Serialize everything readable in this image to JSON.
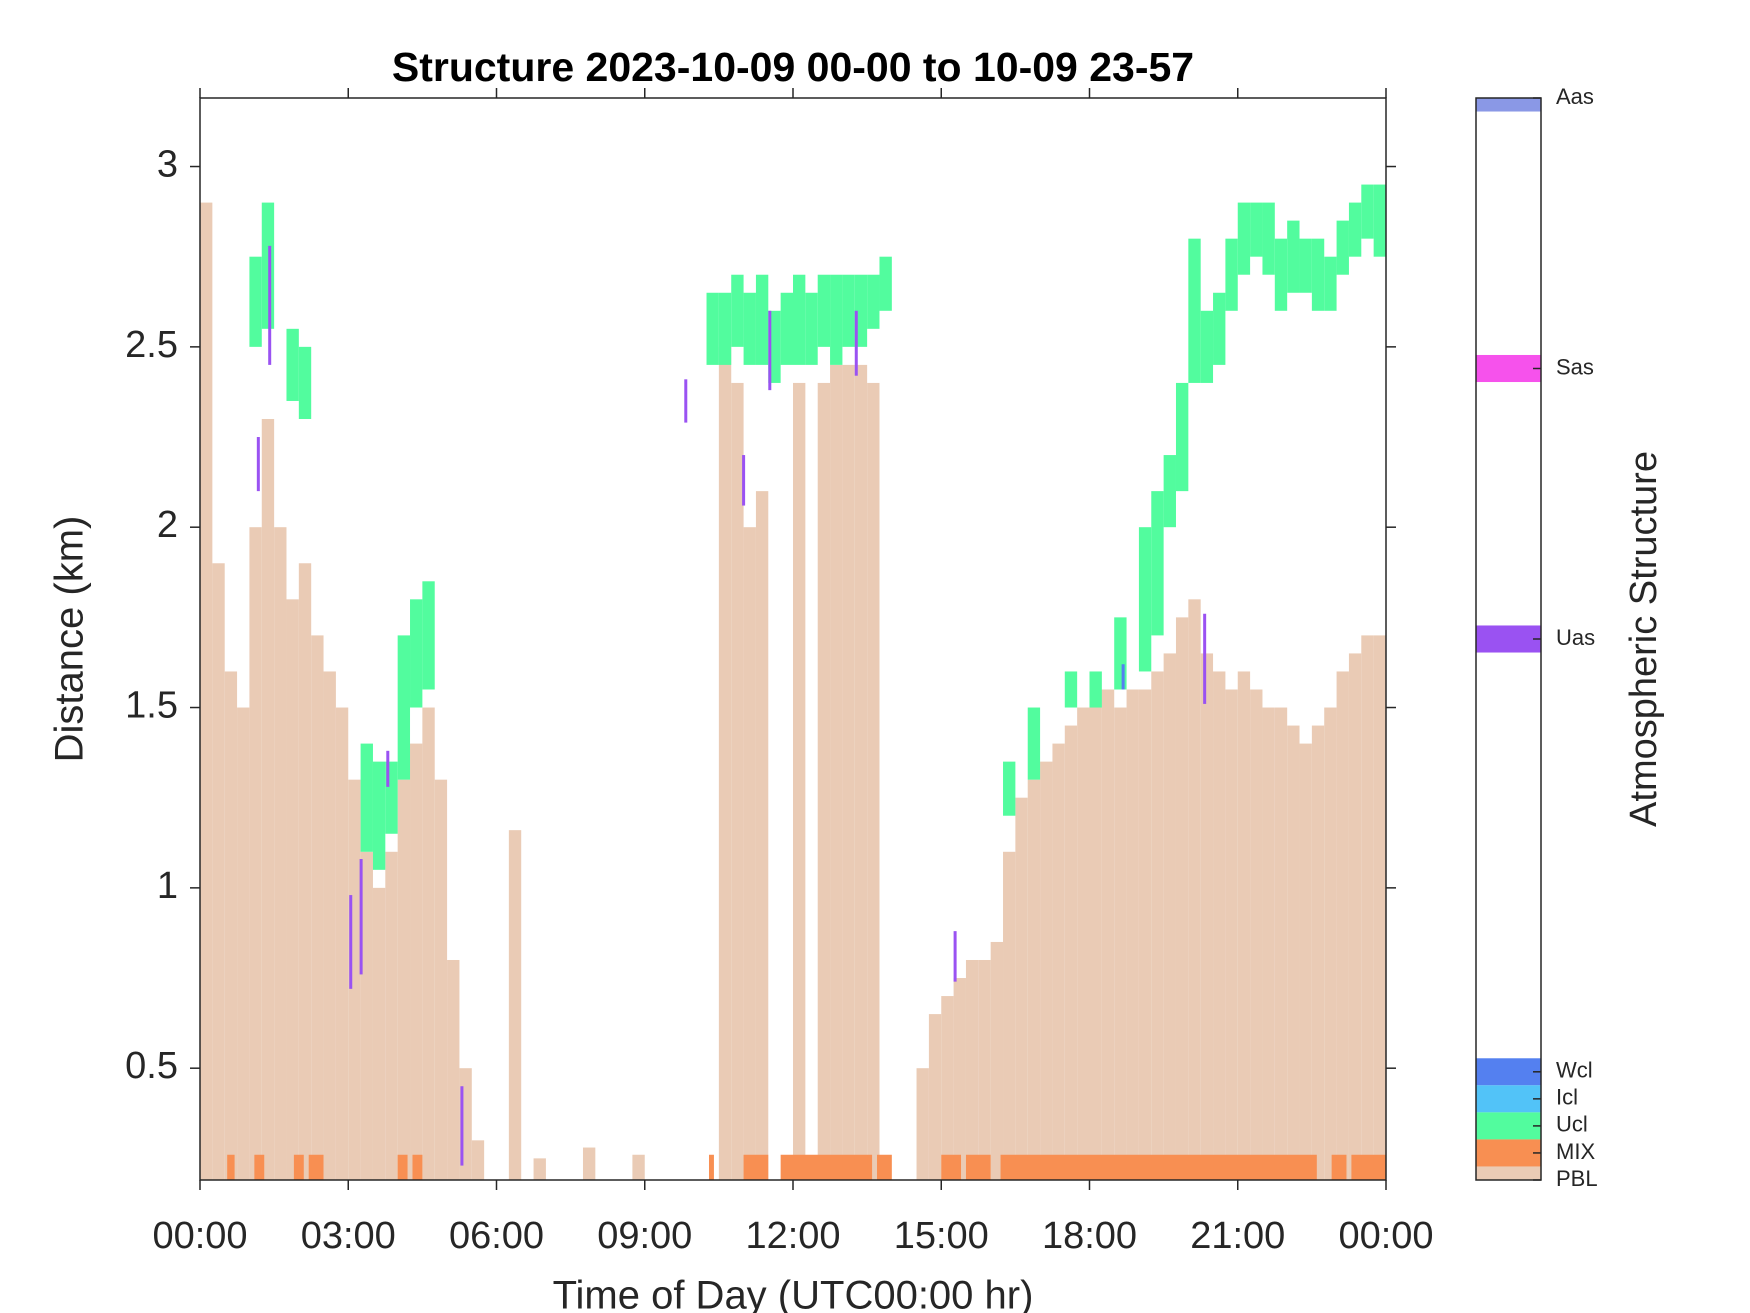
{
  "chart_data": {
    "type": "structure",
    "title": "Structure 2023-10-09 00-00 to 10-09 23-57",
    "x_label": "Time of Day (UTC00:00 hr)",
    "y_label": "Distance (km)",
    "xlim": [
      0,
      24
    ],
    "xticks": [
      {
        "value": 0,
        "label": "00:00"
      },
      {
        "value": 3,
        "label": "03:00"
      },
      {
        "value": 6,
        "label": "06:00"
      },
      {
        "value": 9,
        "label": "09:00"
      },
      {
        "value": 12,
        "label": "12:00"
      },
      {
        "value": 15,
        "label": "15:00"
      },
      {
        "value": 18,
        "label": "18:00"
      },
      {
        "value": 21,
        "label": "21:00"
      },
      {
        "value": 24,
        "label": "00:00"
      }
    ],
    "ylim": [
      0.19,
      3.19
    ],
    "yticks": [
      0.5,
      1,
      1.5,
      2,
      2.5,
      3
    ],
    "series": [
      {
        "name": "PBL",
        "color": "#eacbb5",
        "x": [
          0,
          0.25,
          0.5,
          0.75,
          1,
          1.25,
          1.5,
          1.75,
          2,
          2.25,
          2.5,
          2.75,
          3,
          3.25,
          3.5,
          3.75,
          4,
          4.25,
          4.5,
          4.75,
          5,
          5.25,
          5.5,
          6.25,
          6.75,
          7.75,
          8.75,
          10.5,
          10.75,
          11,
          11.25,
          12,
          12.5,
          12.75,
          13,
          13.25,
          13.5,
          14.5,
          14.75,
          15,
          15.25,
          15.5,
          15.75,
          16,
          16.25,
          16.5,
          16.75,
          17,
          17.25,
          17.5,
          17.75,
          18,
          18.25,
          18.5,
          18.75,
          19,
          19.25,
          19.5,
          19.75,
          20,
          20.25,
          20.5,
          20.75,
          21,
          21.25,
          21.5,
          21.75,
          22,
          22.25,
          22.5,
          22.75,
          23,
          23.25,
          23.5,
          23.75
        ],
        "values": [
          2.9,
          1.9,
          1.6,
          1.5,
          2.0,
          2.3,
          2.0,
          1.8,
          1.9,
          1.7,
          1.6,
          1.5,
          1.3,
          1.1,
          1.0,
          1.1,
          1.3,
          1.4,
          1.5,
          1.3,
          0.8,
          0.5,
          0.3,
          1.16,
          0.25,
          0.28,
          0.26,
          2.5,
          2.4,
          2.0,
          2.1,
          2.4,
          2.4,
          2.45,
          2.45,
          2.45,
          2.4,
          0.5,
          0.65,
          0.7,
          0.75,
          0.8,
          0.8,
          0.85,
          1.1,
          1.25,
          1.3,
          1.35,
          1.4,
          1.45,
          1.5,
          1.55,
          1.55,
          1.5,
          1.55,
          1.55,
          1.6,
          1.65,
          1.75,
          1.8,
          1.65,
          1.6,
          1.55,
          1.6,
          1.55,
          1.5,
          1.5,
          1.45,
          1.4,
          1.45,
          1.5,
          1.6,
          1.65,
          1.7,
          1.7
        ]
      },
      {
        "name": "MIX",
        "color": "#f88f52",
        "x": [
          0.55,
          1.1,
          1.9,
          2.2,
          4.0,
          4.3,
          10.3,
          11.0,
          11.75,
          12.0,
          13.7,
          15.0,
          15.5,
          16.2,
          22.9,
          23.3
        ],
        "x_end": [
          0.7,
          1.3,
          2.1,
          2.5,
          4.2,
          4.5,
          10.4,
          11.5,
          12.0,
          13.6,
          14.0,
          15.4,
          16.0,
          22.6,
          23.2,
          24.0
        ],
        "values": [
          0.26,
          0.26,
          0.26,
          0.26,
          0.26,
          0.26,
          0.26,
          0.26,
          0.26,
          0.26,
          0.26,
          0.26,
          0.26,
          0.26,
          0.26,
          0.26
        ]
      },
      {
        "name": "Ucl",
        "color": "#52fc9e",
        "x": [
          1,
          1.25,
          1.75,
          2,
          3.25,
          3.5,
          3.75,
          4,
          4.25,
          4.5,
          10.25,
          10.5,
          10.75,
          11,
          11.25,
          11.5,
          11.75,
          12,
          12.25,
          12.5,
          12.75,
          13,
          13.25,
          13.5,
          13.75,
          16.25,
          16.75,
          17.5,
          18,
          18.5,
          19,
          19.25,
          19.5,
          19.75,
          20,
          20.25,
          20.5,
          20.75,
          21,
          21.25,
          21.5,
          21.75,
          22,
          22.25,
          22.5,
          22.75,
          23,
          23.25,
          23.5,
          23.75
        ],
        "low": [
          2.5,
          2.55,
          2.35,
          2.3,
          1.1,
          1.05,
          1.15,
          1.3,
          1.5,
          1.55,
          2.45,
          2.45,
          2.5,
          2.45,
          2.45,
          2.4,
          2.45,
          2.45,
          2.45,
          2.5,
          2.45,
          2.5,
          2.5,
          2.55,
          2.6,
          1.2,
          1.3,
          1.5,
          1.5,
          1.55,
          1.6,
          1.7,
          2.0,
          2.1,
          2.4,
          2.4,
          2.45,
          2.6,
          2.7,
          2.75,
          2.7,
          2.6,
          2.65,
          2.65,
          2.6,
          2.6,
          2.7,
          2.75,
          2.8,
          2.75
        ],
        "high": [
          2.75,
          2.9,
          2.55,
          2.5,
          1.4,
          1.35,
          1.35,
          1.7,
          1.8,
          1.85,
          2.65,
          2.65,
          2.7,
          2.65,
          2.7,
          2.6,
          2.65,
          2.7,
          2.65,
          2.7,
          2.7,
          2.7,
          2.7,
          2.7,
          2.75,
          1.35,
          1.5,
          1.6,
          1.6,
          1.75,
          2.0,
          2.1,
          2.2,
          2.4,
          2.8,
          2.6,
          2.65,
          2.8,
          2.9,
          2.9,
          2.9,
          2.8,
          2.85,
          2.8,
          2.8,
          2.75,
          2.85,
          2.9,
          2.95,
          2.95
        ]
      },
      {
        "name": "Uas",
        "color": "#9a52f2",
        "x": [
          1.15,
          1.38,
          3.02,
          3.23,
          3.77,
          5.27,
          9.8,
          10.97,
          11.5,
          13.25,
          15.25,
          20.3
        ],
        "low": [
          2.1,
          2.45,
          0.72,
          0.76,
          1.28,
          0.23,
          2.29,
          2.06,
          2.38,
          2.42,
          0.74,
          1.51
        ],
        "high": [
          2.25,
          2.78,
          0.98,
          1.08,
          1.38,
          0.45,
          2.41,
          2.2,
          2.6,
          2.6,
          0.88,
          1.76
        ]
      },
      {
        "name": "Wcl",
        "color": "#5480f0",
        "x": [
          18.65
        ],
        "low": [
          1.55
        ],
        "high": [
          1.62
        ]
      }
    ],
    "colorbar": {
      "label": "Atmospheric Structure",
      "clim": [
        0,
        40
      ],
      "ticks": [
        {
          "value": 40,
          "label": "Aas"
        },
        {
          "value": 30,
          "label": "Sas"
        },
        {
          "value": 20,
          "label": "Uas"
        },
        {
          "value": 4,
          "label": "Wcl"
        },
        {
          "value": 3,
          "label": "Icl"
        },
        {
          "value": 2,
          "label": "Ucl"
        },
        {
          "value": 1,
          "label": "MIX"
        },
        {
          "value": 0,
          "label": "PBL"
        }
      ],
      "colors": [
        "#8a98e6",
        "#f652ec",
        "#9a52f2",
        "#5480f0",
        "#52c3f8",
        "#52fc9e",
        "#f88f52",
        "#eacbb5"
      ]
    }
  }
}
